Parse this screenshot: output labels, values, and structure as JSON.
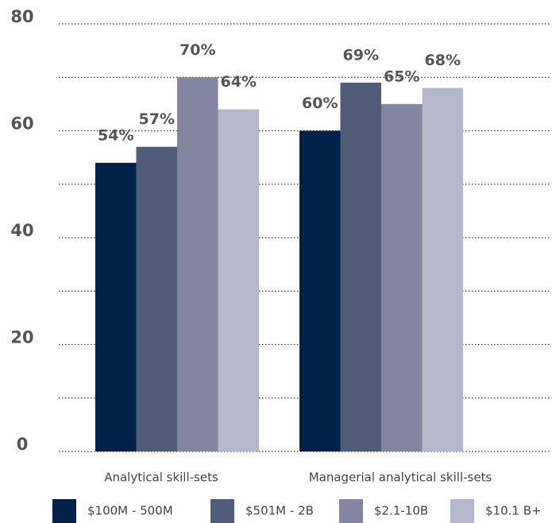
{
  "chart_data": {
    "type": "bar",
    "categories": [
      "Analytical skill-sets",
      "Managerial analytical skill-sets"
    ],
    "series": [
      {
        "name": "$100M - 500M",
        "color": "#022149",
        "values": [
          54,
          60
        ],
        "value_labels": [
          "54%",
          "60%"
        ]
      },
      {
        "name": "$501M - 2B",
        "color": "#505c79",
        "values": [
          57,
          69
        ],
        "value_labels": [
          "57%",
          "69%"
        ]
      },
      {
        "name": "$2.1-10B",
        "color": "#82869f",
        "values": [
          70,
          65
        ],
        "value_labels": [
          "70%",
          "65%"
        ]
      },
      {
        "name": "$10.1 B+",
        "color": "#b5b8cb",
        "values": [
          64,
          68
        ],
        "value_labels": [
          "64%",
          "68%"
        ]
      }
    ],
    "ylim": [
      0,
      80
    ],
    "yticks": [
      0,
      20,
      40,
      60,
      80
    ],
    "minor_yticks": [
      10,
      30,
      50,
      70
    ],
    "grid": true,
    "legend": "bottom"
  }
}
